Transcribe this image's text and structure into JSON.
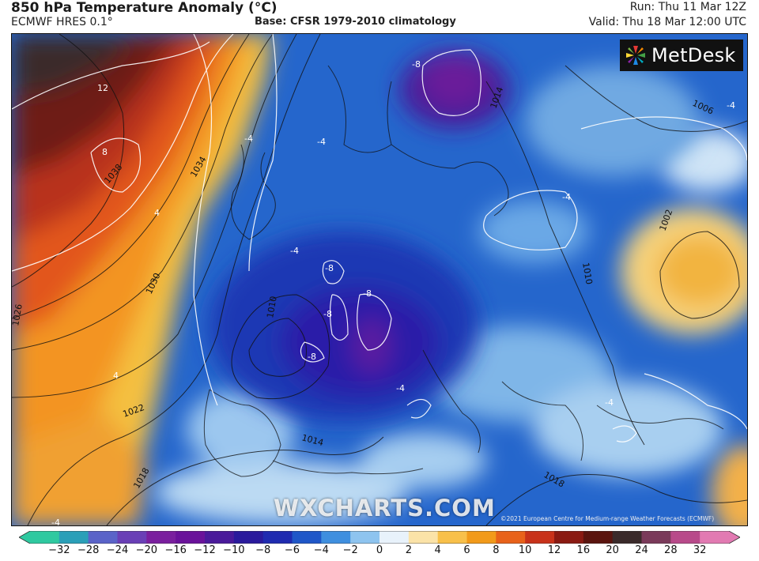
{
  "header": {
    "title": "850 hPa Temperature Anomaly (°C)",
    "model": "ECMWF HRES 0.1°",
    "base": "Base: CFSR 1979-2010 climatology",
    "run": "Run: Thu 11 Mar 12Z",
    "valid": "Valid: Thu 18 Mar 12:00 UTC"
  },
  "branding": {
    "logo_text": "MetDesk",
    "watermark": "WXCHARTS.COM",
    "copyright": "©2021 European Centre for Medium-range Weather Forecasts (ECMWF)"
  },
  "contour_labels": {
    "isobars": [
      "1034",
      "1030",
      "1026",
      "1022",
      "1018",
      "1014",
      "1018",
      "1010",
      "1014",
      "1010",
      "1006",
      "1002",
      "1038"
    ],
    "anomaly": [
      "12",
      "8",
      "4",
      "4",
      "-4",
      "-4",
      "-8",
      "-4",
      "-4",
      "-8",
      "-8",
      "-8",
      "-8",
      "-4",
      "-4",
      "-4",
      "-4"
    ]
  },
  "colorbar": {
    "ticks": [
      "−32",
      "−28",
      "−24",
      "−20",
      "−16",
      "−12",
      "−10",
      "−8",
      "−6",
      "−4",
      "−2",
      "0",
      "2",
      "4",
      "6",
      "8",
      "10",
      "12",
      "16",
      "20",
      "24",
      "28",
      "32"
    ],
    "colors": [
      "#2fc9a0",
      "#2a9fb8",
      "#5a63c8",
      "#6a3fb6",
      "#7a1f9e",
      "#6a129a",
      "#4a1a9a",
      "#2a1a9c",
      "#1f2bb0",
      "#1f57c8",
      "#3f8fdf",
      "#8ec4ef",
      "#e8f2fb",
      "#fbe3a8",
      "#f8c04a",
      "#f29a1a",
      "#e8621a",
      "#c8321a",
      "#8a1a12",
      "#5a140e",
      "#3a2a2a",
      "#7a3a5a",
      "#b84a8a",
      "#e27ab2"
    ]
  }
}
